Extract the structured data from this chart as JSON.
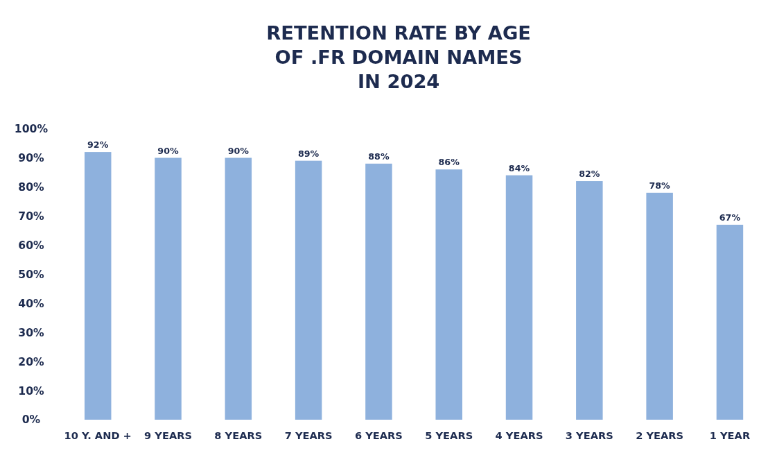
{
  "chart_data": {
    "type": "bar",
    "title": "RETENTION RATE BY AGE\nOF .FR DOMAIN NAMES\nIN 2024",
    "categories": [
      "10 Y. AND +",
      "9 YEARS",
      "8 YEARS",
      "7 YEARS",
      "6 YEARS",
      "5 YEARS",
      "4 YEARS",
      "3 YEARS",
      "2 YEARS",
      "1 YEAR"
    ],
    "values": [
      92,
      90,
      90,
      89,
      88,
      86,
      84,
      82,
      78,
      67
    ],
    "color": "#8eb1dd",
    "ylim": [
      0,
      100
    ],
    "yticks": [
      {
        "value": 0,
        "label": "0%"
      },
      {
        "value": 10,
        "label": "10%"
      },
      {
        "value": 20,
        "label": "20%"
      },
      {
        "value": 30,
        "label": "30%"
      },
      {
        "value": 40,
        "label": "40%"
      },
      {
        "value": 50,
        "label": "50%"
      },
      {
        "value": 60,
        "label": "60%"
      },
      {
        "value": 70,
        "label": "70%"
      },
      {
        "value": 80,
        "label": "80%"
      },
      {
        "value": 90,
        "label": "90%"
      },
      {
        "value": 100,
        "label": "100%"
      }
    ],
    "data_labels": true,
    "value_labels": [
      "92%",
      "90%",
      "90%",
      "89%",
      "88%",
      "86%",
      "84%",
      "82%",
      "78%",
      "67%"
    ],
    "grid": false
  }
}
